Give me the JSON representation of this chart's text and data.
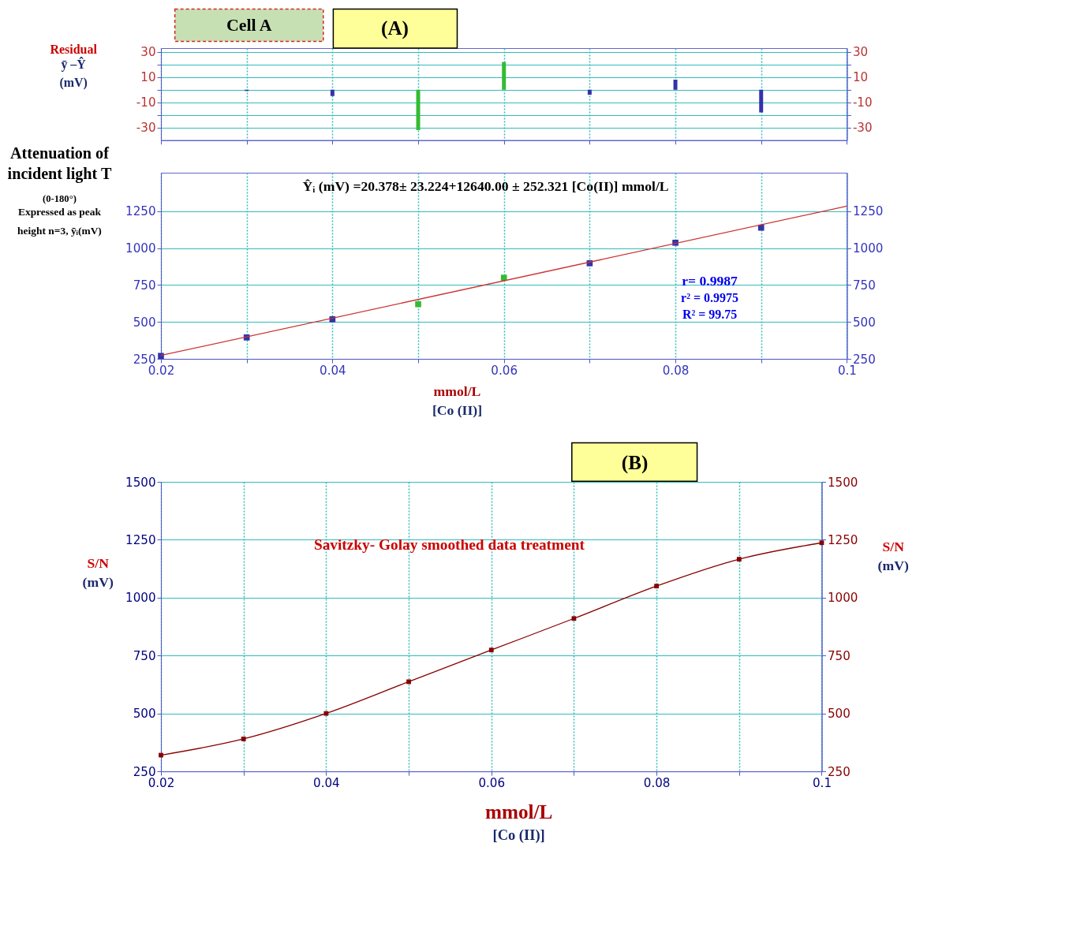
{
  "chart_data": [
    {
      "type": "bar",
      "title": "(A)",
      "annotations": [
        "Cell A"
      ],
      "ylabel": "Residual\nȳ –Ŷ\n(mV)",
      "categories": [
        null,
        null,
        null,
        null,
        null,
        null,
        null,
        null,
        null
      ],
      "values": [
        null,
        -1,
        -5,
        -32,
        22,
        -4,
        8,
        -18,
        null
      ],
      "colors": [
        "#3333aa",
        "#3333aa",
        "#3333aa",
        "#33bb33",
        "#33bb33",
        "#3333aa",
        "#3333aa",
        "#3333aa",
        "#3333aa"
      ],
      "ylim": [
        -40,
        33
      ],
      "yticks": [
        30,
        {
          "value": 20,
          "label": null
        },
        10,
        {
          "value": 0,
          "label": null
        },
        -10,
        {
          "value": -20,
          "label": null
        },
        -30
      ],
      "y2lim": [
        -40,
        33
      ],
      "y2ticks": [
        30,
        {
          "value": 20,
          "label": null
        },
        10,
        {
          "value": 0,
          "label": null
        },
        -10,
        {
          "value": -20,
          "label": null
        },
        -30
      ],
      "tick_labels": "y",
      "grid": true
    },
    {
      "type": "scatter",
      "ylabel": "Attenuation of\nincident light T\n(0-180°)\nExpressed as peak\nheight n=3, ȳᵢ(mV)",
      "xlabel": "mmol/L\n[Co (II)]",
      "annotations": [
        "Ŷᵢ (mV) =20.378± 23.224+12640.00 ± 252.321 [Co(II)] mmol/L",
        "r= 0.9987",
        "r² = 0.9975",
        "R² = 99.75"
      ],
      "series": [
        {
          "type": "scatter",
          "x": [
            0.02,
            0.03,
            0.04,
            0.05,
            0.06,
            0.07,
            0.08,
            0.09
          ],
          "values": [
            270,
            395,
            518,
            620,
            799,
            897,
            1036,
            1138
          ],
          "colors": [
            "#3333aa",
            "#3333aa",
            "#3333aa",
            "#33bb33",
            "#33bb33",
            "#3333aa",
            "#3333aa",
            "#3333aa"
          ],
          "marker": "square"
        },
        {
          "type": "line",
          "x": [
            0.02,
            0.1
          ],
          "values": [
            273,
            1284
          ],
          "color": "#cc3333"
        }
      ],
      "xlim": [
        0.02,
        0.1
      ],
      "xticks": [
        0.02,
        {
          "value": 0.03,
          "label": null
        },
        0.04,
        {
          "value": 0.05,
          "label": null
        },
        0.06,
        {
          "value": 0.07,
          "label": null
        },
        0.08,
        {
          "value": 0.09,
          "label": null
        },
        0.1
      ],
      "ylim": [
        250,
        1510
      ],
      "yticks": [
        250,
        500,
        750,
        1000,
        1250
      ],
      "y2lim": [
        250,
        1510
      ],
      "y2ticks": [
        250,
        500,
        750,
        1000,
        1250
      ],
      "grid": true
    },
    {
      "type": "line",
      "title": "(B)",
      "ylabel": "S/N\n(mV)",
      "y2label": "S/N\n(mV)",
      "xlabel": "mmol/L\n[Co (II)]",
      "annotations": [
        "Savitzky- Golay smoothed data treatment"
      ],
      "x": [
        0.02,
        0.03,
        0.04,
        0.05,
        0.06,
        0.07,
        0.08,
        0.09,
        0.1
      ],
      "series": [
        {
          "values": [
            320,
            390,
            500,
            637,
            774,
            910,
            1050,
            1166,
            1237
          ],
          "color": "#880000"
        }
      ],
      "marker": "square",
      "xlim": [
        0.02,
        0.1
      ],
      "xticks": [
        0.02,
        {
          "value": 0.03,
          "label": null
        },
        0.04,
        {
          "value": 0.05,
          "label": null
        },
        0.06,
        {
          "value": 0.07,
          "label": null
        },
        0.08,
        {
          "value": 0.09,
          "label": null
        },
        0.1
      ],
      "ylim": [
        250,
        1500
      ],
      "yticks": [
        250,
        500,
        750,
        1000,
        1250,
        1500
      ],
      "y2lim": [
        250,
        1500
      ],
      "y2ticks": [
        250,
        500,
        750,
        1000,
        1250,
        1500
      ],
      "grid": true
    }
  ]
}
